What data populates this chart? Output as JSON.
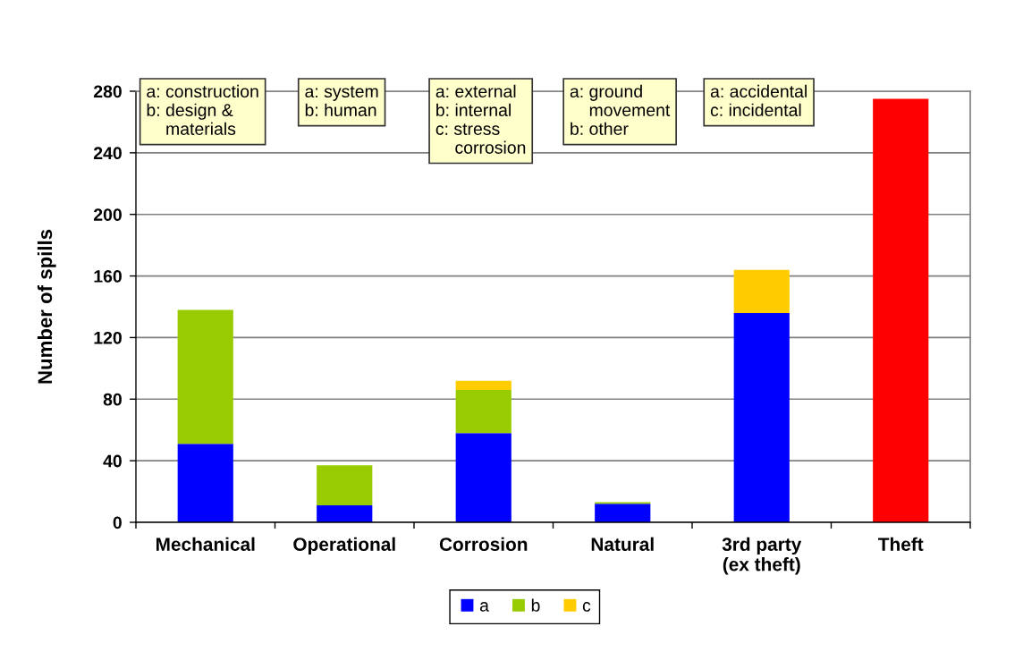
{
  "chart_data": {
    "type": "bar",
    "categories": [
      "Mechanical",
      "Operational",
      "Corrosion",
      "Natural",
      "3rd party\n(ex theft)",
      "Theft"
    ],
    "ylabel": "Number of spills",
    "stacked": true,
    "ylim": [
      0,
      280
    ],
    "yticks": [
      0,
      40,
      80,
      120,
      160,
      200,
      240,
      280
    ],
    "grid": "y",
    "legend": "bottom",
    "series": [
      {
        "name": "a",
        "color": "#0000ff",
        "colors": [
          "#0000ff",
          "#0000ff",
          "#0000ff",
          "#0000ff",
          "#0000ff",
          "#ff0000"
        ],
        "values": [
          51,
          11,
          58,
          12,
          136,
          275
        ]
      },
      {
        "name": "b",
        "color": "#99cc00",
        "values": [
          87,
          26,
          28,
          1,
          null,
          null
        ]
      },
      {
        "name": "c",
        "color": "#ffcc00",
        "values": [
          null,
          null,
          6,
          null,
          28,
          null
        ]
      }
    ],
    "annotations": [
      "a: construction\nb: design &\n    materials",
      "a: system\nb: human",
      "a: external\nb: internal\nc: stress\n    corrosion",
      "a: ground\n    movement\nb: other",
      "a: accidental\nc: incidental"
    ]
  }
}
